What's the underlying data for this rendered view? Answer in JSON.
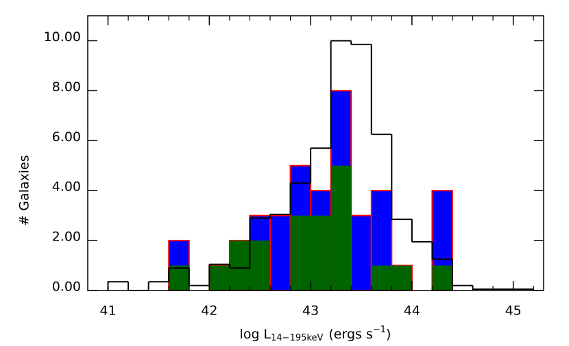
{
  "chart_data": {
    "type": "histogram",
    "xlabel": {
      "text": "log L",
      "subscript": "14−195keV",
      "rest": "(ergs s",
      "superscript": "−1",
      "end": ")"
    },
    "ylabel": "# Galaxies",
    "bins": [
      41.0,
      41.2,
      41.4,
      41.6,
      41.8,
      42.0,
      42.2,
      42.4,
      42.6,
      42.8,
      43.0,
      43.2,
      43.4,
      43.6,
      43.8,
      44.0,
      44.2,
      44.4,
      44.6,
      44.8,
      45.0,
      45.2
    ],
    "series": [
      {
        "color": "#0000ff",
        "edgecolor": "#ff0000",
        "values": [
          0,
          0,
          0,
          2,
          0,
          1,
          2,
          3,
          3,
          5,
          4,
          8,
          3,
          4,
          1,
          0,
          4,
          0,
          0,
          0,
          0
        ]
      },
      {
        "color": "#006400",
        "values": [
          0,
          0,
          0,
          1,
          0,
          1,
          2,
          2,
          0,
          3,
          3,
          5,
          0,
          1,
          1,
          0,
          1,
          0,
          0,
          0,
          0
        ]
      },
      {
        "edgecolor": "#000000",
        "values": [
          0.35,
          0,
          0.35,
          0.9,
          0.2,
          1.05,
          0.9,
          2.9,
          3.05,
          4.3,
          5.7,
          10,
          9.85,
          6.25,
          2.85,
          1.95,
          1.25,
          0.2,
          0.05,
          0.05,
          0.05
        ]
      }
    ],
    "xlim": [
      40.8,
      45.3
    ],
    "xticks": [
      41,
      42,
      43,
      44,
      45
    ],
    "ylim": [
      0,
      11
    ],
    "yticks": [
      {
        "value": 0,
        "label": "0.00"
      },
      {
        "value": 2,
        "label": "2.00"
      },
      {
        "value": 4,
        "label": "4.00"
      },
      {
        "value": 6,
        "label": "6.00"
      },
      {
        "value": 8,
        "label": "8.00"
      },
      {
        "value": 10,
        "label": "10.00"
      }
    ]
  }
}
